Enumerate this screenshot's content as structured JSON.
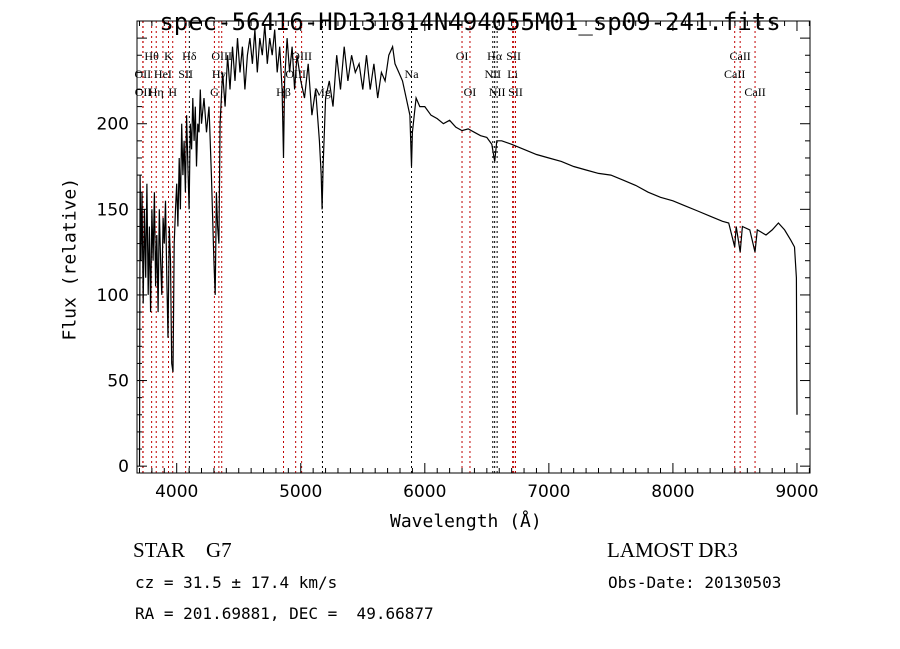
{
  "chart_data": {
    "type": "line",
    "title": "spec-56416-HD131814N494055M01_sp09-241.fits",
    "xlabel": "Wavelength (Å)",
    "ylabel": "Flux (relative)",
    "xlim": [
      3680,
      9105
    ],
    "ylim": [
      -4,
      260
    ],
    "xticks": [
      4000,
      5000,
      6000,
      7000,
      8000,
      9000
    ],
    "yticks": [
      0,
      50,
      100,
      150,
      200
    ],
    "grid": false,
    "series": [
      {
        "name": "spectrum",
        "points": [
          [
            3700,
            0
          ],
          [
            3705,
            170
          ],
          [
            3712,
            120
          ],
          [
            3720,
            160
          ],
          [
            3730,
            95
          ],
          [
            3740,
            150
          ],
          [
            3750,
            110
          ],
          [
            3760,
            165
          ],
          [
            3770,
            100
          ],
          [
            3780,
            140
          ],
          [
            3790,
            90
          ],
          [
            3800,
            150
          ],
          [
            3810,
            120
          ],
          [
            3820,
            160
          ],
          [
            3830,
            105
          ],
          [
            3840,
            135
          ],
          [
            3850,
            90
          ],
          [
            3860,
            150
          ],
          [
            3870,
            120
          ],
          [
            3880,
            100
          ],
          [
            3890,
            145
          ],
          [
            3900,
            130
          ],
          [
            3910,
            155
          ],
          [
            3920,
            110
          ],
          [
            3930,
            75
          ],
          [
            3940,
            140
          ],
          [
            3950,
            120
          ],
          [
            3960,
            60
          ],
          [
            3970,
            55
          ],
          [
            3980,
            130
          ],
          [
            3990,
            150
          ],
          [
            4000,
            165
          ],
          [
            4010,
            140
          ],
          [
            4020,
            180
          ],
          [
            4030,
            150
          ],
          [
            4040,
            200
          ],
          [
            4050,
            170
          ],
          [
            4060,
            190
          ],
          [
            4070,
            160
          ],
          [
            4080,
            205
          ],
          [
            4090,
            175
          ],
          [
            4100,
            150
          ],
          [
            4110,
            200
          ],
          [
            4120,
            185
          ],
          [
            4130,
            215
          ],
          [
            4140,
            190
          ],
          [
            4150,
            210
          ],
          [
            4160,
            175
          ],
          [
            4170,
            200
          ],
          [
            4180,
            195
          ],
          [
            4190,
            220
          ],
          [
            4200,
            200
          ],
          [
            4220,
            215
          ],
          [
            4240,
            195
          ],
          [
            4260,
            210
          ],
          [
            4280,
            170
          ],
          [
            4300,
            120
          ],
          [
            4310,
            100
          ],
          [
            4320,
            160
          ],
          [
            4330,
            140
          ],
          [
            4340,
            130
          ],
          [
            4350,
            200
          ],
          [
            4370,
            230
          ],
          [
            4390,
            210
          ],
          [
            4410,
            240
          ],
          [
            4430,
            220
          ],
          [
            4450,
            245
          ],
          [
            4470,
            225
          ],
          [
            4490,
            250
          ],
          [
            4510,
            230
          ],
          [
            4530,
            245
          ],
          [
            4550,
            220
          ],
          [
            4570,
            240
          ],
          [
            4590,
            250
          ],
          [
            4610,
            235
          ],
          [
            4630,
            255
          ],
          [
            4650,
            230
          ],
          [
            4670,
            250
          ],
          [
            4690,
            240
          ],
          [
            4710,
            258
          ],
          [
            4730,
            235
          ],
          [
            4750,
            250
          ],
          [
            4770,
            240
          ],
          [
            4790,
            255
          ],
          [
            4810,
            230
          ],
          [
            4830,
            245
          ],
          [
            4850,
            220
          ],
          [
            4861,
            180
          ],
          [
            4870,
            225
          ],
          [
            4890,
            250
          ],
          [
            4910,
            230
          ],
          [
            4930,
            245
          ],
          [
            4950,
            220
          ],
          [
            4970,
            240
          ],
          [
            5000,
            225
          ],
          [
            5030,
            215
          ],
          [
            5060,
            235
          ],
          [
            5090,
            205
          ],
          [
            5120,
            220
          ],
          [
            5150,
            190
          ],
          [
            5165,
            170
          ],
          [
            5172,
            150
          ],
          [
            5180,
            175
          ],
          [
            5200,
            215
          ],
          [
            5230,
            225
          ],
          [
            5260,
            210
          ],
          [
            5290,
            240
          ],
          [
            5320,
            220
          ],
          [
            5350,
            245
          ],
          [
            5380,
            225
          ],
          [
            5410,
            240
          ],
          [
            5440,
            230
          ],
          [
            5470,
            235
          ],
          [
            5500,
            220
          ],
          [
            5530,
            240
          ],
          [
            5560,
            220
          ],
          [
            5590,
            235
          ],
          [
            5620,
            215
          ],
          [
            5650,
            230
          ],
          [
            5680,
            225
          ],
          [
            5710,
            240
          ],
          [
            5740,
            245
          ],
          [
            5760,
            235
          ],
          [
            5790,
            230
          ],
          [
            5820,
            225
          ],
          [
            5850,
            215
          ],
          [
            5880,
            205
          ],
          [
            5893,
            175
          ],
          [
            5900,
            195
          ],
          [
            5930,
            215
          ],
          [
            5960,
            210
          ],
          [
            6000,
            210
          ],
          [
            6050,
            205
          ],
          [
            6100,
            203
          ],
          [
            6150,
            200
          ],
          [
            6200,
            202
          ],
          [
            6250,
            198
          ],
          [
            6300,
            196
          ],
          [
            6350,
            197
          ],
          [
            6400,
            195
          ],
          [
            6450,
            193
          ],
          [
            6500,
            192
          ],
          [
            6540,
            188
          ],
          [
            6563,
            178
          ],
          [
            6580,
            190
          ],
          [
            6620,
            190
          ],
          [
            6700,
            188
          ],
          [
            6800,
            185
          ],
          [
            6900,
            182
          ],
          [
            7000,
            180
          ],
          [
            7100,
            178
          ],
          [
            7200,
            175
          ],
          [
            7300,
            173
          ],
          [
            7400,
            171
          ],
          [
            7500,
            170
          ],
          [
            7600,
            167
          ],
          [
            7700,
            164
          ],
          [
            7800,
            160
          ],
          [
            7900,
            157
          ],
          [
            8000,
            155
          ],
          [
            8100,
            152
          ],
          [
            8200,
            149
          ],
          [
            8300,
            146
          ],
          [
            8400,
            143
          ],
          [
            8450,
            142
          ],
          [
            8498,
            128
          ],
          [
            8510,
            140
          ],
          [
            8542,
            125
          ],
          [
            8560,
            140
          ],
          [
            8620,
            138
          ],
          [
            8662,
            125
          ],
          [
            8680,
            138
          ],
          [
            8750,
            135
          ],
          [
            8800,
            138
          ],
          [
            8850,
            142
          ],
          [
            8900,
            138
          ],
          [
            8950,
            132
          ],
          [
            8980,
            128
          ],
          [
            8995,
            110
          ],
          [
            9000,
            30
          ]
        ]
      }
    ],
    "lines": [
      {
        "label": "Hθ",
        "wave": 3798,
        "row": 0,
        "color": "#c00000"
      },
      {
        "label": "K",
        "wave": 3934,
        "row": 0,
        "color": "#c00000"
      },
      {
        "label": "Hδ",
        "wave": 4102,
        "row": 0,
        "color": "#000000"
      },
      {
        "label": "OIII",
        "wave": 4363,
        "row": 0,
        "color": "#c00000"
      },
      {
        "label": "OIII",
        "wave": 5007,
        "row": 0,
        "color": "#c00000"
      },
      {
        "label": "OI",
        "wave": 6300,
        "row": 0,
        "color": "#c00000"
      },
      {
        "label": "Hα",
        "wave": 6563,
        "row": 0,
        "color": "#000000"
      },
      {
        "label": "SII",
        "wave": 6716,
        "row": 0,
        "color": "#c00000"
      },
      {
        "label": "CaII",
        "wave": 8542,
        "row": 0,
        "color": "#c00000"
      },
      {
        "label": "OII",
        "wave": 3727,
        "row": 1,
        "color": "#c00000"
      },
      {
        "label": "HeI",
        "wave": 3889,
        "row": 1,
        "color": "#c00000"
      },
      {
        "label": "SII",
        "wave": 4072,
        "row": 1,
        "color": "#c00000"
      },
      {
        "label": "Hγ",
        "wave": 4340,
        "row": 1,
        "color": "#c00000"
      },
      {
        "label": "OIII",
        "wave": 4959,
        "row": 1,
        "color": "#c00000"
      },
      {
        "label": "Na",
        "wave": 5893,
        "row": 1,
        "color": "#000000"
      },
      {
        "label": "NII",
        "wave": 6548,
        "row": 1,
        "color": "#000000"
      },
      {
        "label": "Li",
        "wave": 6708,
        "row": 1,
        "color": "#c00000"
      },
      {
        "label": "CaII",
        "wave": 8498,
        "row": 1,
        "color": "#c00000"
      },
      {
        "label": "OII",
        "wave": 3729,
        "row": 2,
        "color": "#c00000"
      },
      {
        "label": "Hη",
        "wave": 3835,
        "row": 2,
        "color": "#c00000"
      },
      {
        "label": "H",
        "wave": 3968,
        "row": 2,
        "color": "#c00000"
      },
      {
        "label": "G",
        "wave": 4304,
        "row": 2,
        "color": "#c00000"
      },
      {
        "label": "Hβ",
        "wave": 4861,
        "row": 2,
        "color": "#c00000"
      },
      {
        "label": "Mg",
        "wave": 5175,
        "row": 2,
        "color": "#000000"
      },
      {
        "label": "OI",
        "wave": 6364,
        "row": 2,
        "color": "#c00000"
      },
      {
        "label": "NII",
        "wave": 6583,
        "row": 2,
        "color": "#000000"
      },
      {
        "label": "SII",
        "wave": 6731,
        "row": 2,
        "color": "#c00000"
      },
      {
        "label": "CaII",
        "wave": 8662,
        "row": 2,
        "color": "#c00000"
      }
    ]
  },
  "info": {
    "object_class": "STAR    G7",
    "survey": "LAMOST DR3",
    "cz": "cz = 31.5 ± 17.4 km/s",
    "obs_date": "Obs-Date: 20130503",
    "coords": "RA = 201.69881, DEC =  49.66877"
  }
}
